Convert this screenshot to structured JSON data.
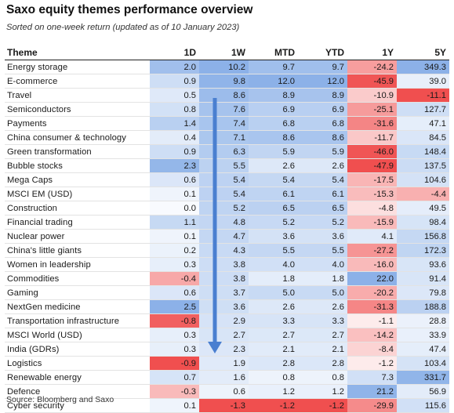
{
  "title": "Saxo equity themes performance overview",
  "subtitle": "Sorted on one-week return (updated as of 10 January 2023)",
  "source": "Source: Bloomberg and Saxo",
  "columns": [
    "Theme",
    "1D",
    "1W",
    "MTD",
    "YTD",
    "1Y",
    "5Y"
  ],
  "rows": [
    {
      "theme": "Energy storage",
      "d1": "2.0",
      "w1": "10.2",
      "mtd": "9.7",
      "ytd": "9.7",
      "y1": "-24.2",
      "y5": "349.3"
    },
    {
      "theme": "E-commerce",
      "d1": "0.9",
      "w1": "9.8",
      "mtd": "12.0",
      "ytd": "12.0",
      "y1": "-45.9",
      "y5": "39.0"
    },
    {
      "theme": "Travel",
      "d1": "0.5",
      "w1": "8.6",
      "mtd": "8.9",
      "ytd": "8.9",
      "y1": "-10.9",
      "y5": "-11.1"
    },
    {
      "theme": "Semiconductors",
      "d1": "0.8",
      "w1": "7.6",
      "mtd": "6.9",
      "ytd": "6.9",
      "y1": "-25.1",
      "y5": "127.7"
    },
    {
      "theme": "Payments",
      "d1": "1.4",
      "w1": "7.4",
      "mtd": "6.8",
      "ytd": "6.8",
      "y1": "-31.6",
      "y5": "47.1"
    },
    {
      "theme": "China consumer & technology",
      "d1": "0.4",
      "w1": "7.1",
      "mtd": "8.6",
      "ytd": "8.6",
      "y1": "-11.7",
      "y5": "84.5"
    },
    {
      "theme": "Green transformation",
      "d1": "0.9",
      "w1": "6.3",
      "mtd": "5.9",
      "ytd": "5.9",
      "y1": "-46.0",
      "y5": "148.4"
    },
    {
      "theme": "Bubble stocks",
      "d1": "2.3",
      "w1": "5.5",
      "mtd": "2.6",
      "ytd": "2.6",
      "y1": "-47.9",
      "y5": "137.5"
    },
    {
      "theme": "Mega Caps",
      "d1": "0.6",
      "w1": "5.4",
      "mtd": "5.4",
      "ytd": "5.4",
      "y1": "-17.5",
      "y5": "104.6"
    },
    {
      "theme": "MSCI EM (USD)",
      "d1": "0.1",
      "w1": "5.4",
      "mtd": "6.1",
      "ytd": "6.1",
      "y1": "-15.3",
      "y5": "-4.4"
    },
    {
      "theme": "Construction",
      "d1": "0.0",
      "w1": "5.2",
      "mtd": "6.5",
      "ytd": "6.5",
      "y1": "-4.8",
      "y5": "49.5"
    },
    {
      "theme": "Financial trading",
      "d1": "1.1",
      "w1": "4.8",
      "mtd": "5.2",
      "ytd": "5.2",
      "y1": "-15.9",
      "y5": "98.4"
    },
    {
      "theme": "Nuclear power",
      "d1": "0.1",
      "w1": "4.7",
      "mtd": "3.6",
      "ytd": "3.6",
      "y1": "4.1",
      "y5": "156.8"
    },
    {
      "theme": "China's little giants",
      "d1": "0.2",
      "w1": "4.3",
      "mtd": "5.5",
      "ytd": "5.5",
      "y1": "-27.2",
      "y5": "172.3"
    },
    {
      "theme": "Women in leadership",
      "d1": "0.3",
      "w1": "3.8",
      "mtd": "4.0",
      "ytd": "4.0",
      "y1": "-16.0",
      "y5": "93.6"
    },
    {
      "theme": "Commodities",
      "d1": "-0.4",
      "w1": "3.8",
      "mtd": "1.8",
      "ytd": "1.8",
      "y1": "22.0",
      "y5": "91.4"
    },
    {
      "theme": "Gaming",
      "d1": "0.6",
      "w1": "3.7",
      "mtd": "5.0",
      "ytd": "5.0",
      "y1": "-20.2",
      "y5": "79.8"
    },
    {
      "theme": "NextGen medicine",
      "d1": "2.5",
      "w1": "3.6",
      "mtd": "2.6",
      "ytd": "2.6",
      "y1": "-31.3",
      "y5": "188.8"
    },
    {
      "theme": "Transportation infrastructure",
      "d1": "-0.8",
      "w1": "2.9",
      "mtd": "3.3",
      "ytd": "3.3",
      "y1": "-1.1",
      "y5": "28.8"
    },
    {
      "theme": "MSCI World (USD)",
      "d1": "0.3",
      "w1": "2.7",
      "mtd": "2.7",
      "ytd": "2.7",
      "y1": "-14.2",
      "y5": "33.9"
    },
    {
      "theme": "India (GDRs)",
      "d1": "0.3",
      "w1": "2.3",
      "mtd": "2.1",
      "ytd": "2.1",
      "y1": "-8.4",
      "y5": "47.4"
    },
    {
      "theme": "Logistics",
      "d1": "-0.9",
      "w1": "1.9",
      "mtd": "2.8",
      "ytd": "2.8",
      "y1": "-1.2",
      "y5": "103.4"
    },
    {
      "theme": "Renewable energy",
      "d1": "0.7",
      "w1": "1.6",
      "mtd": "0.8",
      "ytd": "0.8",
      "y1": "7.3",
      "y5": "331.7"
    },
    {
      "theme": "Defence",
      "d1": "-0.3",
      "w1": "0.6",
      "mtd": "1.2",
      "ytd": "1.2",
      "y1": "21.2",
      "y5": "56.9"
    },
    {
      "theme": "Cyber security",
      "d1": "0.1",
      "w1": "-1.3",
      "mtd": "-1.2",
      "ytd": "-1.2",
      "y1": "-29.9",
      "y5": "115.6"
    }
  ],
  "colors": {
    "positive_max": "#6f9ee2",
    "negative_max": "#ee3b3b",
    "neutral": "#ffffff",
    "arrow": "#4a7fd0",
    "header_rule": "#222222"
  }
}
